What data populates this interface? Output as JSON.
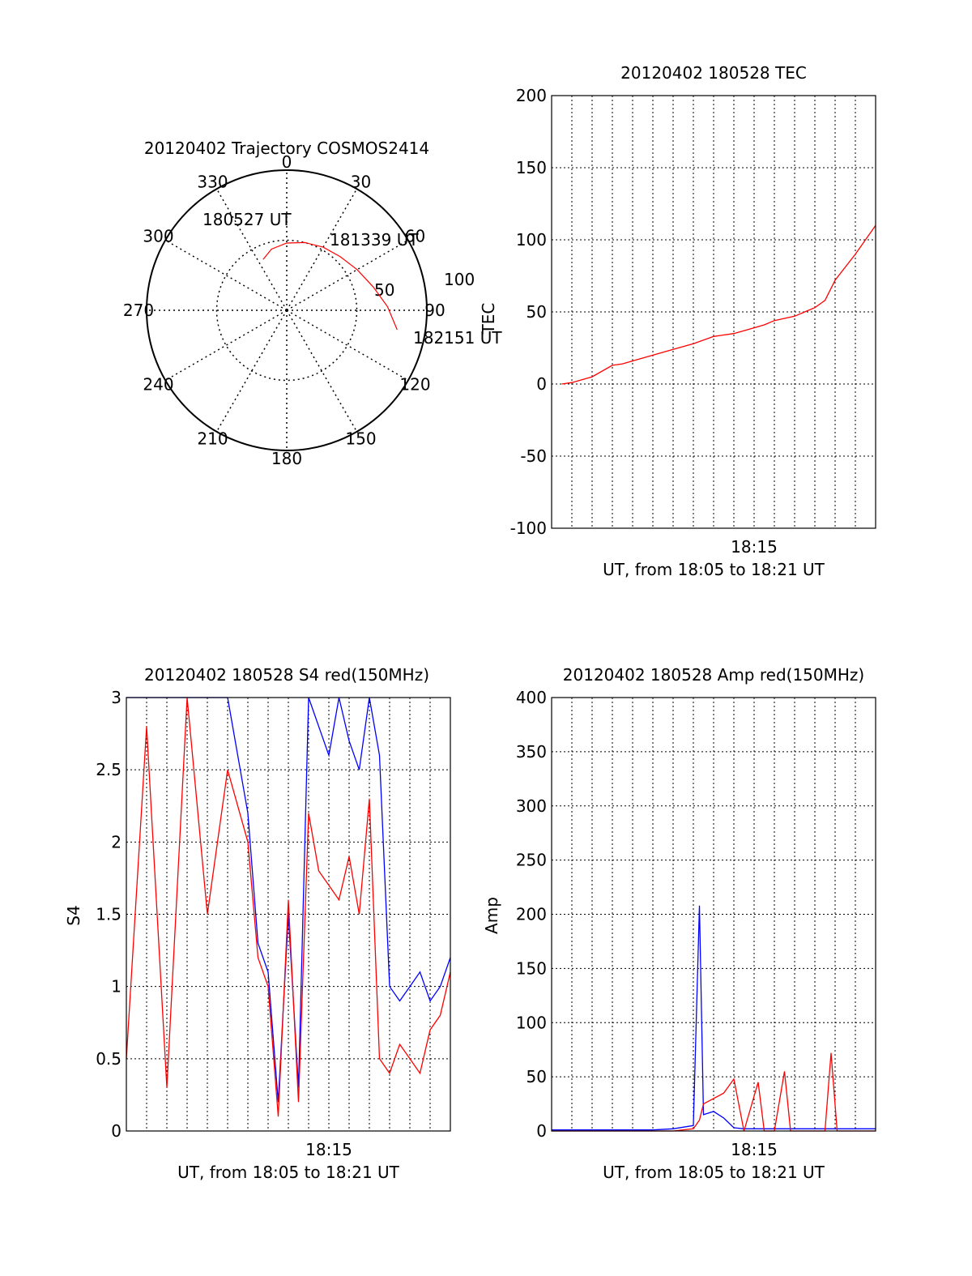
{
  "chart_data": [
    {
      "type": "polar",
      "title": "20120402 Trajectory COSMOS2414",
      "azimuth_labels": [
        "0",
        "30",
        "60",
        "90",
        "120",
        "150",
        "180",
        "210",
        "240",
        "270",
        "300",
        "330"
      ],
      "elevation_labels": [
        "50",
        "100"
      ],
      "trajectory": {
        "color": "#ff0000",
        "points_az_el": [
          [
            -25,
            40
          ],
          [
            -14,
            45
          ],
          [
            0,
            48
          ],
          [
            15,
            50
          ],
          [
            30,
            52
          ],
          [
            45,
            54
          ],
          [
            60,
            58
          ],
          [
            75,
            64
          ],
          [
            88,
            72
          ],
          [
            100,
            80
          ]
        ]
      },
      "annotations": [
        "180527 UT",
        "181339 UT",
        "182151 UT"
      ]
    },
    {
      "type": "line",
      "title": "20120402 180528 TEC",
      "ylabel": "TEC",
      "xlabel": "UT, from 18:05 to 18:21 UT",
      "xticks": [
        "18:15"
      ],
      "ylim": [
        -100,
        200
      ],
      "yticks": [
        "-100",
        "-50",
        "0",
        "50",
        "100",
        "150",
        "200"
      ],
      "x_minutes": [
        0.5,
        1,
        2,
        3,
        3.5,
        4,
        5,
        6,
        7,
        8,
        9,
        10,
        10.5,
        11,
        12,
        12.5,
        13,
        13.5,
        14,
        15,
        15.5,
        16
      ],
      "series": [
        {
          "color": "#ff0000",
          "values": [
            0,
            1,
            5,
            13,
            14,
            16,
            20,
            24,
            28,
            33,
            35,
            39,
            41,
            44,
            47,
            50,
            53,
            58,
            72,
            90,
            100,
            110
          ]
        }
      ]
    },
    {
      "type": "line",
      "title": "20120402 180528 S4 red(150MHz)",
      "ylabel": "S4",
      "xlabel": "UT, from 18:05 to 18:21 UT",
      "xticks": [
        "18:15"
      ],
      "ylim": [
        0,
        3
      ],
      "yticks": [
        "0",
        "0.5",
        "1",
        "1.5",
        "2",
        "2.5",
        "3"
      ],
      "x_minutes": [
        0,
        1,
        2,
        3,
        4,
        5,
        6,
        6.5,
        7,
        7.5,
        8,
        8.5,
        9,
        9.5,
        10,
        10.5,
        11,
        11.5,
        12,
        12.5,
        13,
        13.5,
        14,
        14.5,
        15,
        15.5,
        16
      ],
      "series": [
        {
          "color": "#0000ff",
          "values": [
            3,
            3,
            3,
            3,
            3,
            3,
            2.2,
            1.3,
            1.1,
            0.2,
            1.5,
            0.3,
            3,
            2.8,
            2.6,
            3,
            2.7,
            2.5,
            3,
            2.6,
            1.0,
            0.9,
            1.0,
            1.1,
            0.9,
            1.0,
            1.2
          ]
        },
        {
          "color": "#ff0000",
          "values": [
            0.5,
            2.8,
            0.3,
            3,
            1.5,
            2.5,
            2.0,
            1.2,
            1.0,
            0.1,
            1.6,
            0.2,
            2.2,
            1.8,
            1.7,
            1.6,
            1.9,
            1.5,
            2.3,
            0.5,
            0.4,
            0.6,
            0.5,
            0.4,
            0.7,
            0.8,
            1.1
          ]
        }
      ]
    },
    {
      "type": "line",
      "title": "20120402 180528 Amp red(150MHz)",
      "ylabel": "Amp",
      "xlabel": "UT, from 18:05 to 18:21 UT",
      "xticks": [
        "18:15"
      ],
      "ylim": [
        0,
        400
      ],
      "yticks": [
        "0",
        "50",
        "100",
        "150",
        "200",
        "250",
        "300",
        "350",
        "400"
      ],
      "x_minutes": [
        0,
        1,
        2,
        3,
        4,
        5,
        6,
        7,
        7.3,
        7.5,
        8,
        8.5,
        9,
        9.5,
        10.2,
        10.5,
        11,
        11.5,
        11.8,
        12.5,
        13,
        13.5,
        13.8,
        14.1,
        14.5,
        15,
        16
      ],
      "series": [
        {
          "color": "#0000ff",
          "values": [
            1,
            1,
            1,
            1,
            1,
            1,
            2,
            5,
            208,
            15,
            18,
            12,
            3,
            2,
            2,
            2,
            2,
            2,
            2,
            2,
            2,
            2,
            2,
            2,
            2,
            2,
            2
          ]
        },
        {
          "color": "#ff0000",
          "values": [
            0,
            0,
            0,
            0,
            0,
            0,
            0,
            2,
            10,
            25,
            30,
            35,
            48,
            0,
            45,
            0,
            0,
            55,
            0,
            0,
            0,
            0,
            72,
            0,
            0,
            0,
            0
          ]
        }
      ]
    }
  ]
}
